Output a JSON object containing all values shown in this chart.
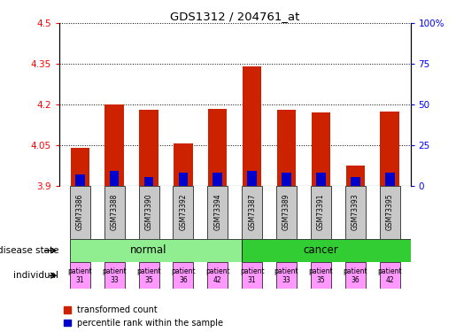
{
  "title": "GDS1312 / 204761_at",
  "samples": [
    "GSM73386",
    "GSM73388",
    "GSM73390",
    "GSM73392",
    "GSM73394",
    "GSM73387",
    "GSM73389",
    "GSM73391",
    "GSM73393",
    "GSM73395"
  ],
  "transformed_counts": [
    4.04,
    4.2,
    4.18,
    4.055,
    4.185,
    4.34,
    4.18,
    4.17,
    3.975,
    4.175
  ],
  "percentile_ranks": [
    7,
    9,
    5,
    8,
    8,
    9,
    8,
    8,
    5,
    8
  ],
  "baseline": 3.9,
  "ylim_left": [
    3.9,
    4.5
  ],
  "ylim_right": [
    0,
    100
  ],
  "right_ticks": [
    0,
    25,
    50,
    75,
    100
  ],
  "right_tick_labels": [
    "0",
    "25",
    "50",
    "75",
    "100%"
  ],
  "left_ticks": [
    3.9,
    4.05,
    4.2,
    4.35,
    4.5
  ],
  "left_tick_labels": [
    "3.9",
    "4.05",
    "4.2",
    "4.35",
    "4.5"
  ],
  "individuals": [
    "patient\n31",
    "patient\n33",
    "patient\n35",
    "patient\n36",
    "patient\n42",
    "patient\n31",
    "patient\n33",
    "patient\n35",
    "patient\n36",
    "patient\n42"
  ],
  "normal_color": "#90EE90",
  "cancer_color": "#32CD32",
  "individual_color": "#FF99FF",
  "bar_color_red": "#CC2200",
  "bar_color_blue": "#0000CC",
  "bar_width": 0.55,
  "label_red": "transformed count",
  "label_blue": "percentile rank within the sample",
  "background_color": "#ffffff",
  "sample_bg_color": "#C8C8C8"
}
